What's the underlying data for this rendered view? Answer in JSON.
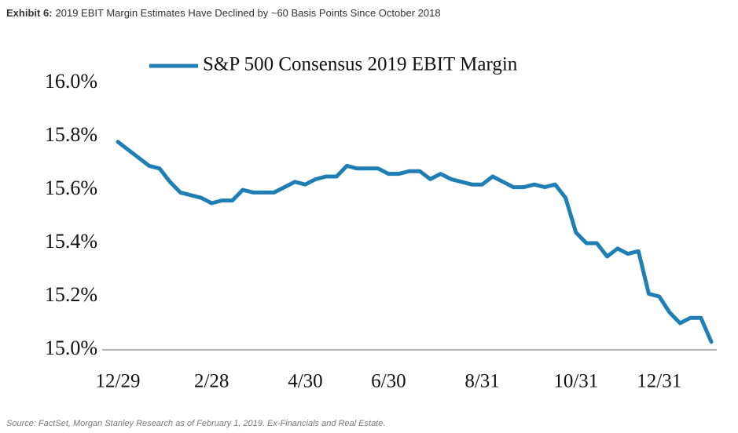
{
  "title_label": "Exhibit 6:",
  "title": "2019 EBIT Margin Estimates Have Declined by ~60 Basis Points Since October 2018",
  "source": "Source: FactSet, Morgan Stanley Research as of February 1, 2019. Ex-Financials and Real Estate.",
  "chart_data": {
    "type": "line",
    "categories": [
      "12/29",
      null,
      null,
      null,
      null,
      null,
      null,
      null,
      null,
      "2/28",
      null,
      null,
      null,
      null,
      null,
      null,
      null,
      null,
      "4/30",
      null,
      null,
      null,
      null,
      null,
      null,
      null,
      "6/30",
      null,
      null,
      null,
      null,
      null,
      null,
      null,
      null,
      "8/31",
      null,
      null,
      null,
      null,
      null,
      null,
      null,
      null,
      "10/31",
      null,
      null,
      null,
      null,
      null,
      null,
      null,
      "12/31",
      null,
      null,
      null,
      null,
      null
    ],
    "series": [
      {
        "name": "S&P 500 Consensus 2019 EBIT Margin",
        "color": "#1f7fb4",
        "values": [
          15.78,
          15.75,
          15.72,
          15.69,
          15.68,
          15.63,
          15.59,
          15.58,
          15.57,
          15.55,
          15.56,
          15.56,
          15.6,
          15.59,
          15.59,
          15.59,
          15.61,
          15.63,
          15.62,
          15.64,
          15.65,
          15.65,
          15.69,
          15.68,
          15.68,
          15.68,
          15.66,
          15.66,
          15.67,
          15.67,
          15.64,
          15.66,
          15.64,
          15.63,
          15.62,
          15.62,
          15.65,
          15.63,
          15.61,
          15.61,
          15.62,
          15.61,
          15.62,
          15.57,
          15.44,
          15.4,
          15.4,
          15.35,
          15.38,
          15.36,
          15.37,
          15.21,
          15.2,
          15.14,
          15.1,
          15.12,
          15.12,
          15.03
        ]
      }
    ],
    "ylim": [
      15.0,
      16.0
    ],
    "yticks": [
      {
        "value": 15.0,
        "label": "15.0%"
      },
      {
        "value": 15.2,
        "label": "15.2%"
      },
      {
        "value": 15.4,
        "label": "15.4%"
      },
      {
        "value": 15.6,
        "label": "15.6%"
      },
      {
        "value": 15.8,
        "label": "15.8%"
      },
      {
        "value": 16.0,
        "label": "16.0%"
      }
    ],
    "grid": false,
    "legend": "top"
  }
}
